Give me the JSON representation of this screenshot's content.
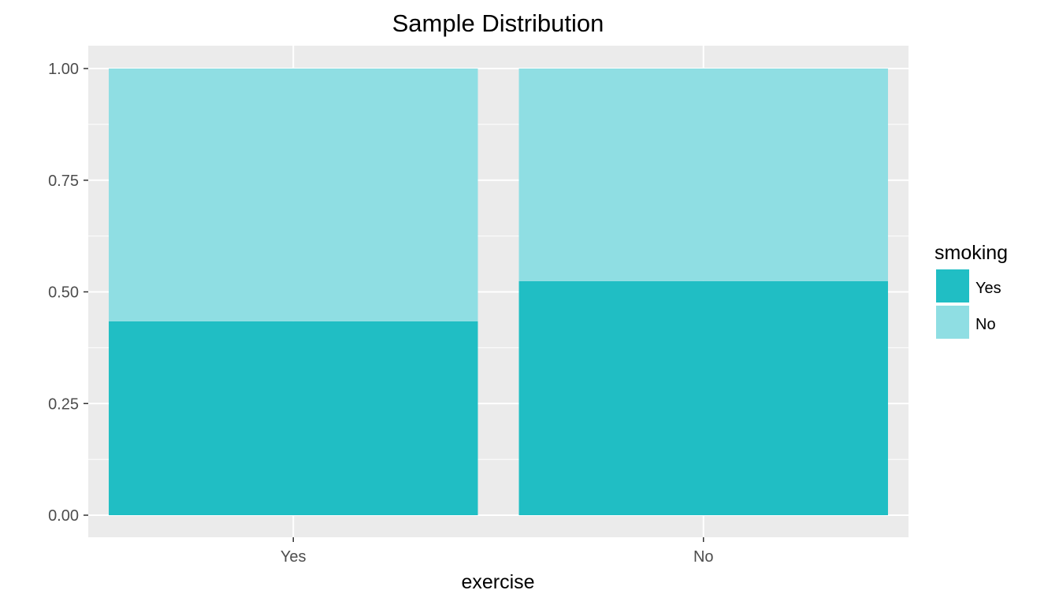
{
  "chart_data": {
    "type": "bar",
    "stacked": true,
    "title": "Sample Distribution",
    "xlabel": "exercise",
    "ylabel": "",
    "categories": [
      "Yes",
      "No"
    ],
    "ylim": [
      0,
      1
    ],
    "yticks": [
      "0.00",
      "0.25",
      "0.50",
      "0.75",
      "1.00"
    ],
    "series": [
      {
        "name": "Yes",
        "values": [
          0.434,
          0.524
        ],
        "color": "#20bec4"
      },
      {
        "name": "No",
        "values": [
          0.566,
          0.476
        ],
        "color": "#8fdee3"
      }
    ],
    "legend": {
      "title": "smoking",
      "position": "right"
    },
    "grid": true,
    "panel_background": "#ebebeb"
  }
}
